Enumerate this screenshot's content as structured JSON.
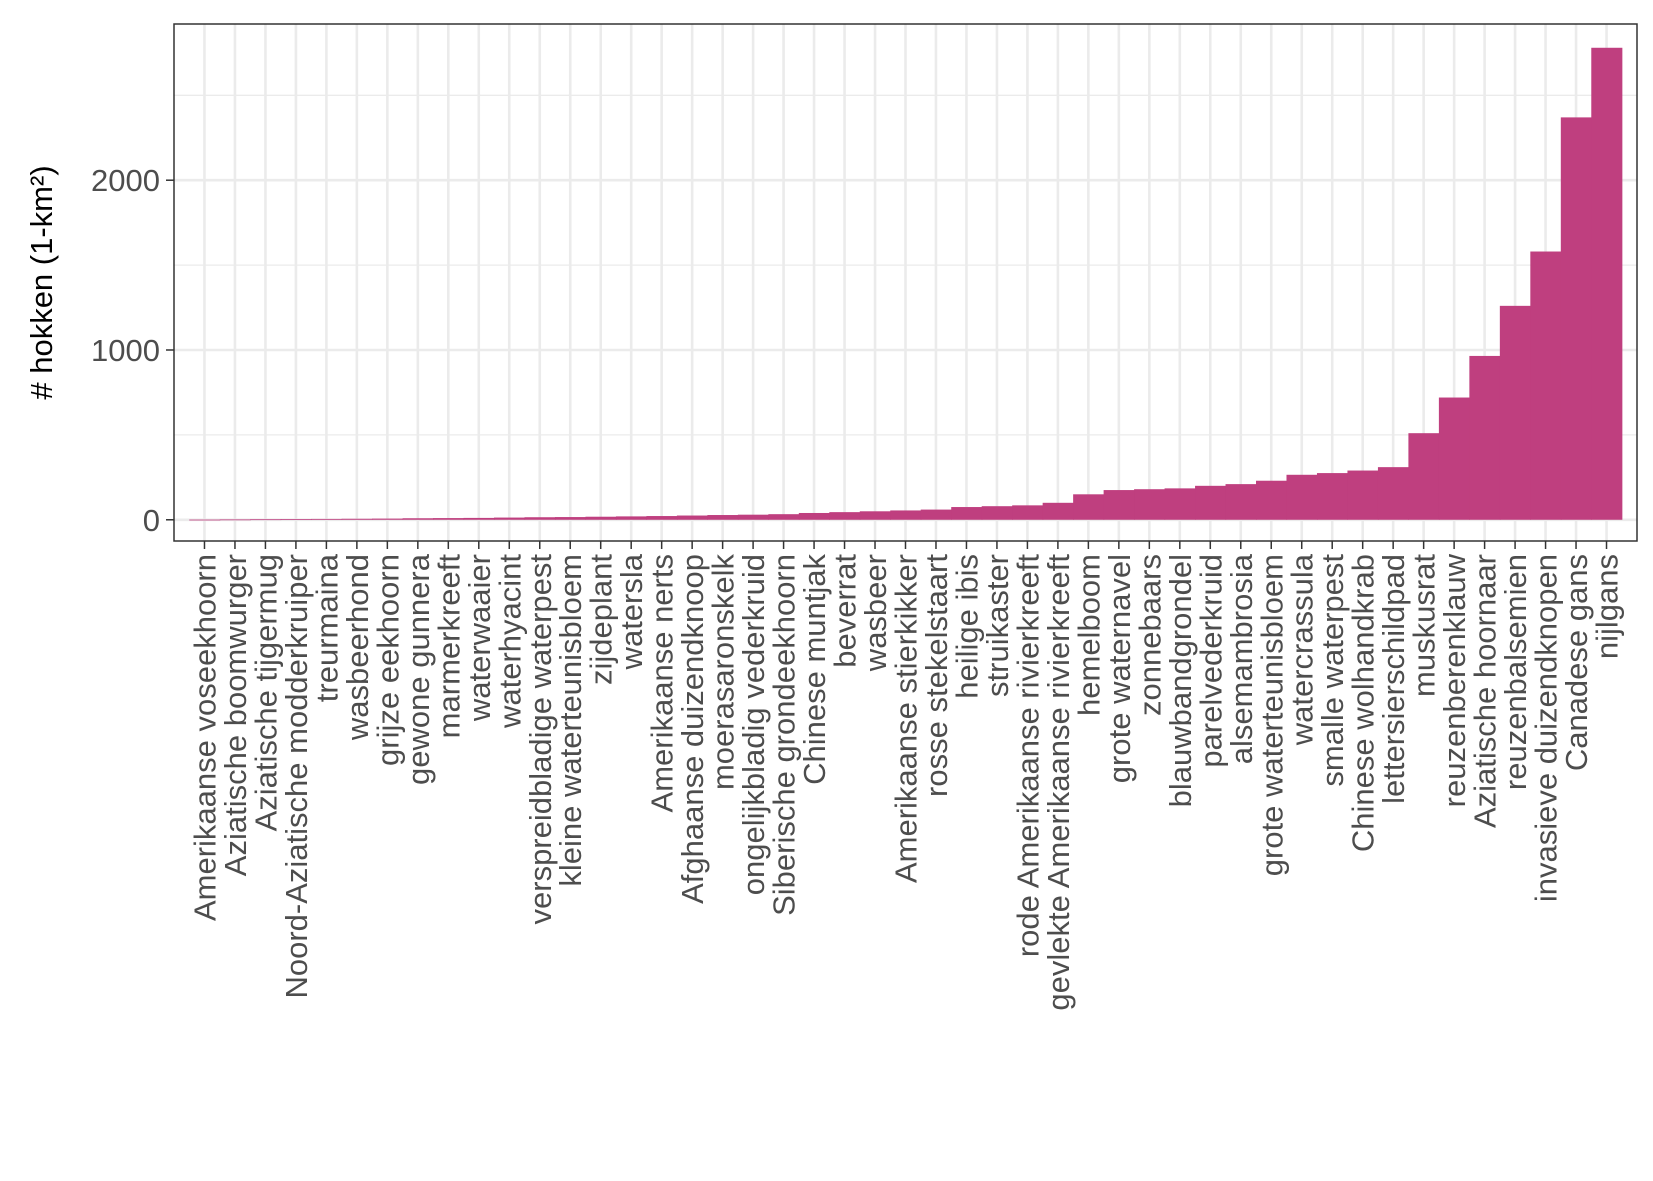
{
  "colors": {
    "bar": "#BF3F7F",
    "grid": "#EBEBEB",
    "axis": "#333333",
    "tick_text": "#4D4D4D",
    "background": "#FFFFFF"
  },
  "chart_data": {
    "type": "bar",
    "title": "",
    "xlabel": "",
    "ylabel": "# hokken (1-km²)",
    "ylim": [
      -125,
      2920
    ],
    "yticks": [
      0,
      1000,
      2000
    ],
    "grid": true,
    "legend": "none",
    "categories": [
      "Amerikaanse voseekhoorn",
      "Aziatische boomwurger",
      "Aziatische tijgermug",
      "Noord-Aziatische modderkruiper",
      "treurmaina",
      "wasbeerhond",
      "grijze eekhoorn",
      "gewone gunnera",
      "marmerkreeft",
      "waterwaaier",
      "waterhyacint",
      "verspreidbladige waterpest",
      "kleine waterteunisbloem",
      "zijdeplant",
      "watersla",
      "Amerikaanse nerts",
      "Afghaanse duizendknoop",
      "moerasaronskelk",
      "ongelijkbladig vederkruid",
      "Siberische grondeekhoorn",
      "Chinese muntjak",
      "beverrat",
      "wasbeer",
      "Amerikaanse stierkikker",
      "rosse stekelstaart",
      "heilige ibis",
      "struikaster",
      "rode Amerikaanse rivierkreeft",
      "gevlekte Amerikaanse rivierkreeft",
      "hemelboom",
      "grote waternavel",
      "zonnebaars",
      "blauwbandgrondel",
      "parelvederkruid",
      "alsemambrosia",
      "grote waterteunisbloem",
      "watercrassula",
      "smalle waterpest",
      "Chinese wolhandkrab",
      "lettersierschildpad",
      "muskusrat",
      "reuzenberenklauw",
      "Aziatische hoornaar",
      "reuzenbalsemien",
      "invasieve duizendknopen",
      "Canadese gans",
      "nijlgans"
    ],
    "values": [
      1,
      2,
      3,
      4,
      5,
      6,
      7,
      9,
      10,
      11,
      13,
      15,
      16,
      18,
      20,
      22,
      25,
      28,
      30,
      33,
      40,
      45,
      50,
      55,
      60,
      75,
      80,
      85,
      100,
      150,
      175,
      180,
      185,
      200,
      210,
      230,
      265,
      275,
      290,
      310,
      510,
      720,
      965,
      1260,
      1580,
      2370,
      2780
    ]
  }
}
